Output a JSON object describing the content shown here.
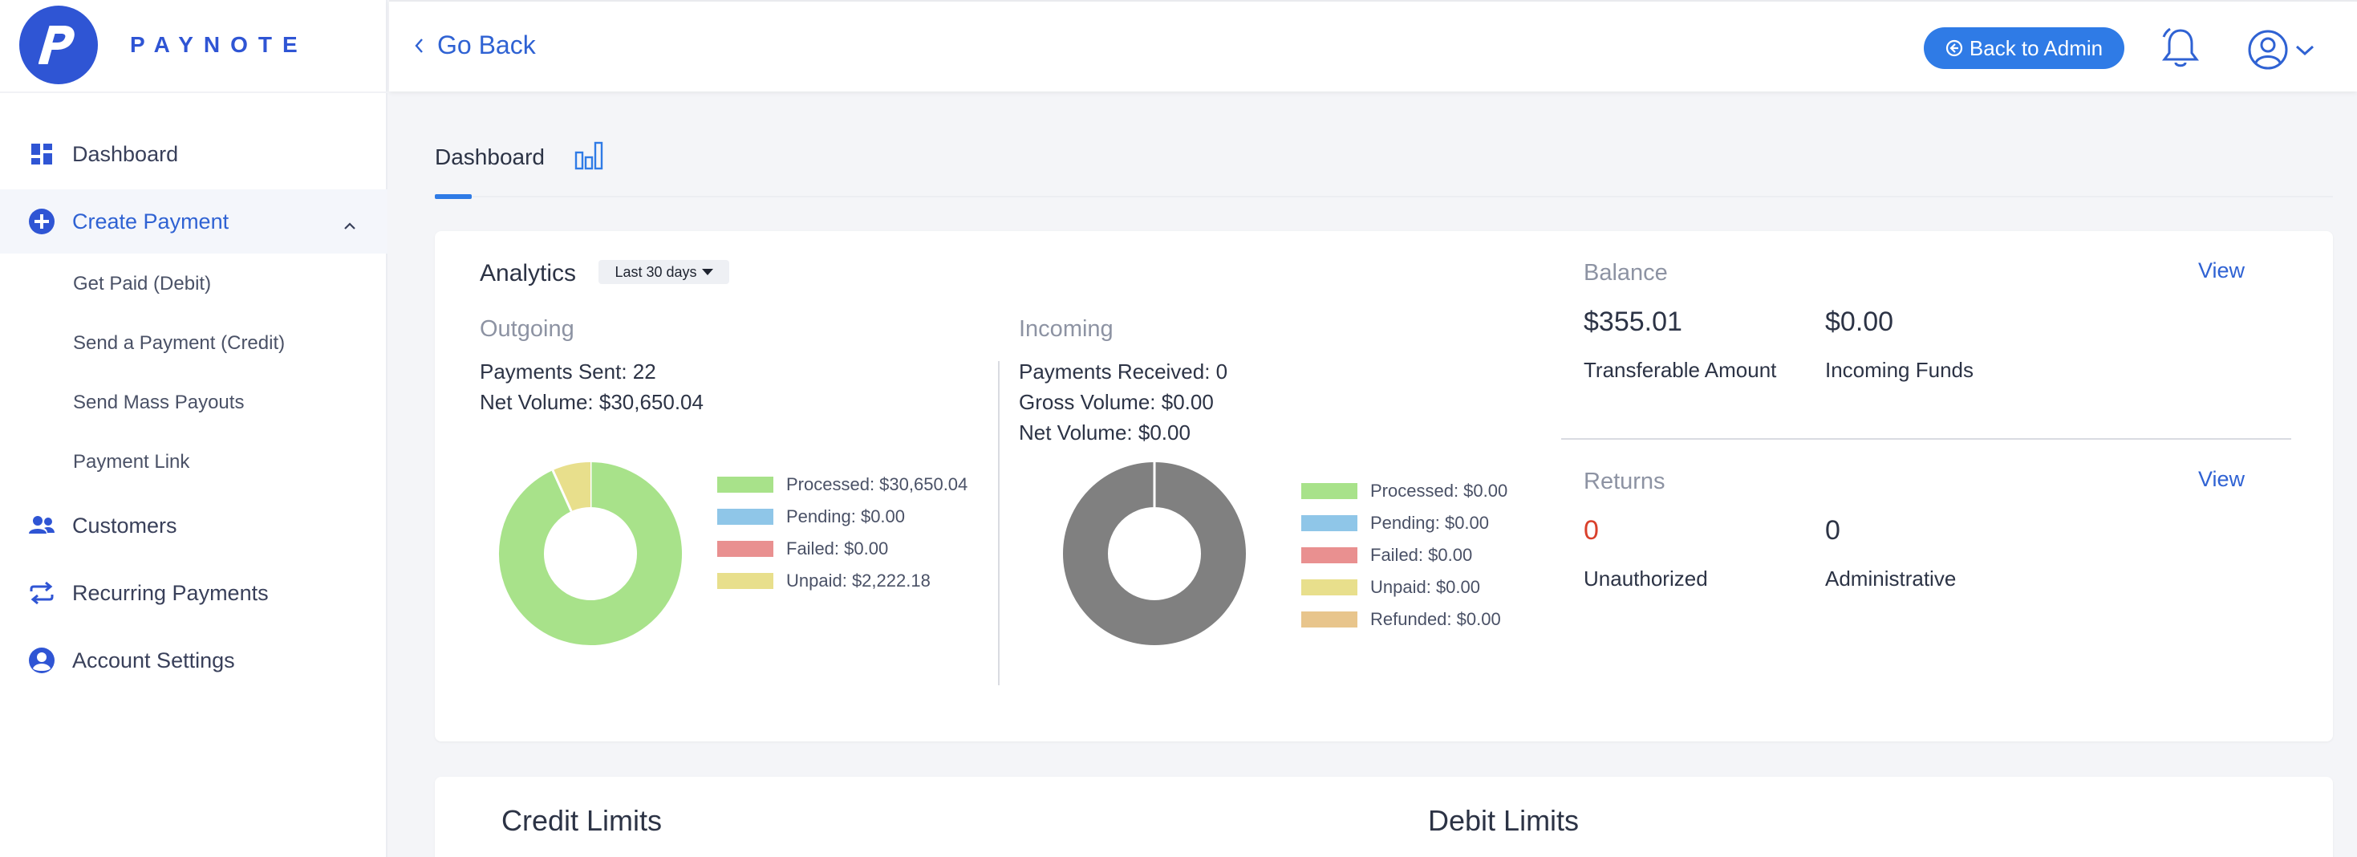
{
  "brand": {
    "name": "PAYNOTE",
    "logo_letter": "P",
    "color": "#2f55d4"
  },
  "sidebar": {
    "items": [
      {
        "label": "Dashboard",
        "icon": "grid-icon"
      },
      {
        "label": "Create Payment",
        "icon": "plus-circle-icon",
        "active": true,
        "expanded": true,
        "children": [
          "Get Paid (Debit)",
          "Send a Payment (Credit)",
          "Send Mass Payouts",
          "Payment Link"
        ]
      },
      {
        "label": "Customers",
        "icon": "users-icon"
      },
      {
        "label": "Recurring Payments",
        "icon": "repeat-icon"
      },
      {
        "label": "Account Settings",
        "icon": "user-circle-icon"
      }
    ]
  },
  "header": {
    "go_back": "Go Back",
    "back_to_admin": "Back to Admin"
  },
  "tabs": {
    "dashboard": "Dashboard"
  },
  "analytics": {
    "title": "Analytics",
    "range": "Last 30 days",
    "outgoing": {
      "title": "Outgoing",
      "payments_sent": "Payments Sent: 22",
      "net_volume": "Net Volume: $30,650.04",
      "legend": [
        {
          "label": "Processed: $30,650.04",
          "color": "#a8e28a",
          "value": 30650.04
        },
        {
          "label": "Pending: $0.00",
          "color": "#8fc6e8",
          "value": 0
        },
        {
          "label": "Failed: $0.00",
          "color": "#e99090",
          "value": 0
        },
        {
          "label": "Unpaid: $2,222.18",
          "color": "#e8df8c",
          "value": 2222.18
        }
      ]
    },
    "incoming": {
      "title": "Incoming",
      "payments_received": "Payments Received: 0",
      "gross_volume": "Gross Volume: $0.00",
      "net_volume": "Net Volume: $0.00",
      "legend": [
        {
          "label": "Processed: $0.00",
          "color": "#a8e28a"
        },
        {
          "label": "Pending: $0.00",
          "color": "#8fc6e8"
        },
        {
          "label": "Failed: $0.00",
          "color": "#e99090"
        },
        {
          "label": "Unpaid: $0.00",
          "color": "#e8df8c"
        },
        {
          "label": "Refunded: $0.00",
          "color": "#e8c58c"
        }
      ],
      "empty_color": "#808080"
    }
  },
  "balance": {
    "title": "Balance",
    "view": "View",
    "transferable_value": "$355.01",
    "transferable_label": "Transferable Amount",
    "incoming_value": "$0.00",
    "incoming_label": "Incoming Funds"
  },
  "returns": {
    "title": "Returns",
    "view": "View",
    "unauthorized_value": "0",
    "unauthorized_label": "Unauthorized",
    "administrative_value": "0",
    "administrative_label": "Administrative"
  },
  "limits": {
    "credit": "Credit Limits",
    "debit": "Debit Limits"
  }
}
